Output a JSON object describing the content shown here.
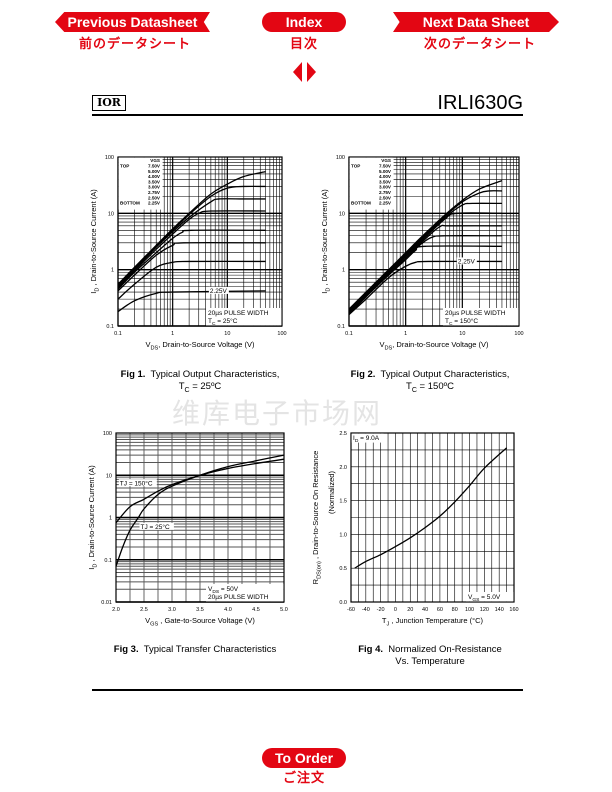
{
  "nav": {
    "prev_label": "Previous Datasheet",
    "prev_jp": "前のデータシート",
    "index_label": "Index",
    "index_jp": "目次",
    "next_label": "Next Data Sheet",
    "next_jp": "次のデータシート",
    "order_label": "To Order",
    "order_jp": "ご注文",
    "accent_color": "#e30613"
  },
  "header": {
    "logo": "IOR",
    "part_number": "IRLI630G"
  },
  "watermark": "维库电子市场网",
  "captions": [
    {
      "fig": "Fig 1.",
      "text": "Typical Output Characteristics,",
      "line2": "T",
      "line2_sub": "C",
      "line2_rest": " = 25ºC"
    },
    {
      "fig": "Fig 2.",
      "text": "Typical Output Characteristics,",
      "line2": "T",
      "line2_sub": "C",
      "line2_rest": " = 150ºC"
    },
    {
      "fig": "Fig 3.",
      "text": "Typical Transfer Characteristics"
    },
    {
      "fig": "Fig 4.",
      "text": "Normalized On-Resistance",
      "line2": "Vs. Temperature"
    }
  ],
  "chart_data": [
    {
      "type": "line",
      "title": "Typical Output Characteristics, TC = 25ºC",
      "xscale": "log",
      "yscale": "log",
      "xlim": [
        0.1,
        100
      ],
      "ylim": [
        0.1,
        100
      ],
      "xticks": [
        0.1,
        1,
        10,
        100
      ],
      "xtick_labels": [
        "0.1",
        "1",
        "10",
        "100"
      ],
      "yticks": [
        0.1,
        1,
        10,
        100
      ],
      "ytick_labels": [
        "0.1",
        "1",
        "10",
        "100"
      ],
      "xlabel": [
        {
          "t": "V"
        },
        {
          "t": "DS",
          "sub": true
        },
        {
          "t": ", Drain-to-Source Voltage (V)"
        }
      ],
      "ylabel": [
        {
          "t": "I"
        },
        {
          "t": "D",
          "sub": true
        },
        {
          "t": " , Drain-to-Source Current (A)"
        }
      ],
      "grid": true,
      "legend": {
        "title": "VGS",
        "top_label": "TOP",
        "bottom_label": "BOTTOM",
        "entries": [
          "7.50V",
          "5.00V",
          "4.00V",
          "3.50V",
          "3.00V",
          "2.75V",
          "2.50V",
          "2.25V"
        ],
        "placement": "top-left"
      },
      "annotation": [
        [
          {
            "t": "20µs PULSE WIDTH"
          }
        ],
        [
          {
            "t": "T"
          },
          {
            "t": "C",
            "sub": true
          },
          {
            "t": " = 25°C"
          }
        ]
      ],
      "curve_labels": [
        {
          "text": "2.25V",
          "x": 7,
          "y": 0.42
        }
      ],
      "series": [
        {
          "name": "7.50V",
          "points": [
            [
              0.1,
              0.55
            ],
            [
              0.2,
              1.1
            ],
            [
              0.5,
              2.7
            ],
            [
              1,
              5.3
            ],
            [
              2,
              10
            ],
            [
              5,
              22
            ],
            [
              10,
              33
            ],
            [
              20,
              45
            ],
            [
              50,
              55
            ]
          ]
        },
        {
          "name": "5.00V",
          "points": [
            [
              0.1,
              0.52
            ],
            [
              0.2,
              1.05
            ],
            [
              0.5,
              2.6
            ],
            [
              1,
              5
            ],
            [
              2,
              9.5
            ],
            [
              5,
              20
            ],
            [
              10,
              28
            ],
            [
              20,
              30
            ],
            [
              50,
              30
            ]
          ]
        },
        {
          "name": "4.00V",
          "points": [
            [
              0.1,
              0.5
            ],
            [
              0.2,
              1
            ],
            [
              0.5,
              2.5
            ],
            [
              1,
              4.7
            ],
            [
              2,
              8.5
            ],
            [
              5,
              16
            ],
            [
              7,
              18
            ],
            [
              20,
              18
            ],
            [
              50,
              18
            ]
          ]
        },
        {
          "name": "3.50V",
          "points": [
            [
              0.1,
              0.48
            ],
            [
              0.2,
              0.95
            ],
            [
              0.5,
              2.3
            ],
            [
              1,
              4.3
            ],
            [
              2,
              7.8
            ],
            [
              3,
              10
            ],
            [
              5,
              11
            ],
            [
              50,
              11
            ]
          ]
        },
        {
          "name": "3.00V",
          "points": [
            [
              0.1,
              0.45
            ],
            [
              0.2,
              0.9
            ],
            [
              0.5,
              2
            ],
            [
              1,
              3.6
            ],
            [
              1.5,
              4.6
            ],
            [
              2.2,
              5
            ],
            [
              50,
              5
            ]
          ]
        },
        {
          "name": "2.75V",
          "points": [
            [
              0.1,
              0.42
            ],
            [
              0.2,
              0.8
            ],
            [
              0.5,
              1.8
            ],
            [
              1,
              2.7
            ],
            [
              1.6,
              3
            ],
            [
              50,
              3
            ]
          ]
        },
        {
          "name": "2.50V",
          "points": [
            [
              0.1,
              0.3
            ],
            [
              0.2,
              0.55
            ],
            [
              0.5,
              1.1
            ],
            [
              1,
              1.35
            ],
            [
              2,
              1.4
            ],
            [
              50,
              1.4
            ]
          ]
        },
        {
          "name": "2.25V",
          "points": [
            [
              0.1,
              0.18
            ],
            [
              0.2,
              0.28
            ],
            [
              0.5,
              0.38
            ],
            [
              1,
              0.4
            ],
            [
              50,
              0.42
            ]
          ]
        }
      ]
    },
    {
      "type": "line",
      "title": "Typical Output Characteristics, TC = 150ºC",
      "xscale": "log",
      "yscale": "log",
      "xlim": [
        0.1,
        100
      ],
      "ylim": [
        0.1,
        100
      ],
      "xticks": [
        0.1,
        1,
        10,
        100
      ],
      "xtick_labels": [
        "0.1",
        "1",
        "10",
        "100"
      ],
      "yticks": [
        0.1,
        1,
        10,
        100
      ],
      "ytick_labels": [
        "0.1",
        "1",
        "10",
        "100"
      ],
      "xlabel": [
        {
          "t": "V"
        },
        {
          "t": "DS",
          "sub": true
        },
        {
          "t": ", Drain-to-Source Voltage (V)"
        }
      ],
      "ylabel": [
        {
          "t": "I"
        },
        {
          "t": "D",
          "sub": true
        },
        {
          "t": " , Drain-to-Source Current (A)"
        }
      ],
      "grid": true,
      "legend": {
        "title": "VGS",
        "top_label": "TOP",
        "bottom_label": "BOTTOM",
        "entries": [
          "7.50V",
          "5.00V",
          "4.00V",
          "3.50V",
          "3.00V",
          "2.75V",
          "2.50V",
          "2.25V"
        ],
        "placement": "top-left"
      },
      "annotation": [
        [
          {
            "t": "20µs PULSE WIDTH"
          }
        ],
        [
          {
            "t": "T"
          },
          {
            "t": "C",
            "sub": true
          },
          {
            "t": " = 150°C"
          }
        ]
      ],
      "curve_labels": [
        {
          "text": "2.25V",
          "x": 12,
          "y": 1.4
        }
      ],
      "series": [
        {
          "name": "7.50V",
          "points": [
            [
              0.1,
              0.2
            ],
            [
              0.2,
              0.4
            ],
            [
              0.5,
              1
            ],
            [
              1,
              2
            ],
            [
              2,
              4
            ],
            [
              5,
              9.5
            ],
            [
              10,
              17
            ],
            [
              20,
              27
            ],
            [
              50,
              38
            ]
          ]
        },
        {
          "name": "5.00V",
          "points": [
            [
              0.1,
              0.19
            ],
            [
              0.2,
              0.38
            ],
            [
              0.5,
              0.95
            ],
            [
              1,
              1.9
            ],
            [
              2,
              3.8
            ],
            [
              5,
              9
            ],
            [
              10,
              16
            ],
            [
              20,
              23
            ],
            [
              30,
              25
            ],
            [
              50,
              25
            ]
          ]
        },
        {
          "name": "4.00V",
          "points": [
            [
              0.1,
              0.18
            ],
            [
              0.2,
              0.37
            ],
            [
              0.5,
              0.9
            ],
            [
              1,
              1.8
            ],
            [
              2,
              3.6
            ],
            [
              5,
              8.5
            ],
            [
              10,
              14
            ],
            [
              15,
              15
            ],
            [
              50,
              15
            ]
          ]
        },
        {
          "name": "3.50V",
          "points": [
            [
              0.1,
              0.18
            ],
            [
              0.2,
              0.36
            ],
            [
              0.5,
              0.9
            ],
            [
              1,
              1.75
            ],
            [
              2,
              3.4
            ],
            [
              5,
              8
            ],
            [
              8,
              10
            ],
            [
              50,
              10
            ]
          ]
        },
        {
          "name": "3.00V",
          "points": [
            [
              0.1,
              0.17
            ],
            [
              0.2,
              0.35
            ],
            [
              0.5,
              0.85
            ],
            [
              1,
              1.7
            ],
            [
              2,
              3.2
            ],
            [
              4,
              5.8
            ],
            [
              6,
              6
            ],
            [
              50,
              6
            ]
          ]
        },
        {
          "name": "2.75V",
          "points": [
            [
              0.1,
              0.17
            ],
            [
              0.2,
              0.34
            ],
            [
              0.5,
              0.82
            ],
            [
              1,
              1.6
            ],
            [
              2,
              3
            ],
            [
              3,
              3.8
            ],
            [
              5,
              4
            ],
            [
              50,
              4
            ]
          ]
        },
        {
          "name": "2.50V",
          "points": [
            [
              0.1,
              0.16
            ],
            [
              0.2,
              0.33
            ],
            [
              0.5,
              0.8
            ],
            [
              1,
              1.5
            ],
            [
              1.5,
              2.2
            ],
            [
              2.2,
              2.6
            ],
            [
              50,
              2.6
            ]
          ]
        },
        {
          "name": "2.25V",
          "points": [
            [
              0.1,
              0.16
            ],
            [
              0.2,
              0.3
            ],
            [
              0.5,
              0.72
            ],
            [
              1,
              1.15
            ],
            [
              1.5,
              1.35
            ],
            [
              2.5,
              1.4
            ],
            [
              50,
              1.4
            ]
          ]
        }
      ]
    },
    {
      "type": "line",
      "title": "Typical Transfer Characteristics",
      "xscale": "linear",
      "yscale": "log",
      "xlim": [
        2.0,
        5.0
      ],
      "ylim": [
        0.01,
        100
      ],
      "xgrid_step": 0.25,
      "xticks": [
        2.0,
        2.5,
        3.0,
        3.5,
        4.0,
        4.5,
        5.0
      ],
      "xtick_labels": [
        "2.0",
        "2.5",
        "3.0",
        "3.5",
        "4.0",
        "4.5",
        "5.0"
      ],
      "yticks": [
        0.01,
        0.1,
        1,
        10,
        100
      ],
      "ytick_labels": [
        "0.01",
        "0.1",
        "1",
        "10",
        "100"
      ],
      "xlabel": [
        {
          "t": "V"
        },
        {
          "t": "GS",
          "sub": true
        },
        {
          "t": " , Gate-to-Source Voltage (V)"
        }
      ],
      "ylabel": [
        {
          "t": "I"
        },
        {
          "t": "D",
          "sub": true
        },
        {
          "t": " , Drain-to-Source Current (A)"
        }
      ],
      "grid": true,
      "annotation": [
        [
          {
            "t": "V"
          },
          {
            "t": "DS",
            "sub": true
          },
          {
            "t": " = 50V"
          }
        ],
        [
          {
            "t": "20µs PULSE WIDTH"
          }
        ]
      ],
      "curve_labels": [
        {
          "text": "TJ = 150°C",
          "x": 2.05,
          "y": 6.5,
          "anchor": "start"
        },
        {
          "text": "TJ = 25°C",
          "x": 2.42,
          "y": 0.6,
          "anchor": "start"
        }
      ],
      "series": [
        {
          "name": "TJ = 150°C",
          "points": [
            [
              2.0,
              0.75
            ],
            [
              2.25,
              1.8
            ],
            [
              2.5,
              2.7
            ],
            [
              2.75,
              4.2
            ],
            [
              3.0,
              6
            ],
            [
              3.5,
              10
            ],
            [
              4.0,
              14.5
            ],
            [
              4.5,
              19
            ],
            [
              5.0,
              24
            ]
          ]
        },
        {
          "name": "TJ = 25°C",
          "points": [
            [
              2.0,
              0.07
            ],
            [
              2.12,
              0.2
            ],
            [
              2.25,
              0.5
            ],
            [
              2.4,
              1
            ],
            [
              2.5,
              1.6
            ],
            [
              2.75,
              3.5
            ],
            [
              3.0,
              5.5
            ],
            [
              3.5,
              10
            ],
            [
              4.0,
              16
            ],
            [
              4.5,
              22
            ],
            [
              5.0,
              30
            ]
          ]
        }
      ]
    },
    {
      "type": "line",
      "title": "Normalized On-Resistance Vs. Temperature",
      "xscale": "linear",
      "yscale": "linear",
      "xlim": [
        -60,
        160
      ],
      "ylim": [
        0,
        2.5
      ],
      "xgrid_step": 10,
      "ygrid_step": 0.25,
      "xticks": [
        -60,
        -40,
        -20,
        0,
        20,
        40,
        60,
        80,
        100,
        120,
        140,
        160
      ],
      "xtick_labels": [
        "-60",
        "-40",
        "-20",
        "0",
        "20",
        "40",
        "60",
        "80",
        "100",
        "120",
        "140",
        "160"
      ],
      "yticks": [
        0,
        0.5,
        1,
        1.5,
        2,
        2.5
      ],
      "ytick_labels": [
        "0.0",
        "0.5",
        "1.0",
        "1.5",
        "2.0",
        "2.5"
      ],
      "xlabel": [
        {
          "t": "T"
        },
        {
          "t": "J",
          "sub": true
        },
        {
          "t": " , Junction Temperature (°C)"
        }
      ],
      "ylabel": [
        {
          "t": "R"
        },
        {
          "t": "DS(on)",
          "sub": true
        },
        {
          "t": " ,  Drain-to-Source On Resistance"
        }
      ],
      "ylabel2": [
        {
          "t": "(Normalized)"
        }
      ],
      "grid": true,
      "annotation_top": [
        [
          {
            "t": "I"
          },
          {
            "t": "D",
            "sub": true
          },
          {
            "t": " = 9.0A"
          }
        ]
      ],
      "annotation": [
        [
          {
            "t": "V"
          },
          {
            "t": "GS",
            "sub": true
          },
          {
            "t": " = 5.0V"
          }
        ]
      ],
      "series": [
        {
          "name": "RDS(on)",
          "points": [
            [
              -55,
              0.5
            ],
            [
              -40,
              0.6
            ],
            [
              -20,
              0.7
            ],
            [
              0,
              0.82
            ],
            [
              20,
              0.95
            ],
            [
              40,
              1.1
            ],
            [
              60,
              1.27
            ],
            [
              80,
              1.48
            ],
            [
              100,
              1.72
            ],
            [
              120,
              1.98
            ],
            [
              150,
              2.28
            ]
          ]
        }
      ]
    }
  ]
}
